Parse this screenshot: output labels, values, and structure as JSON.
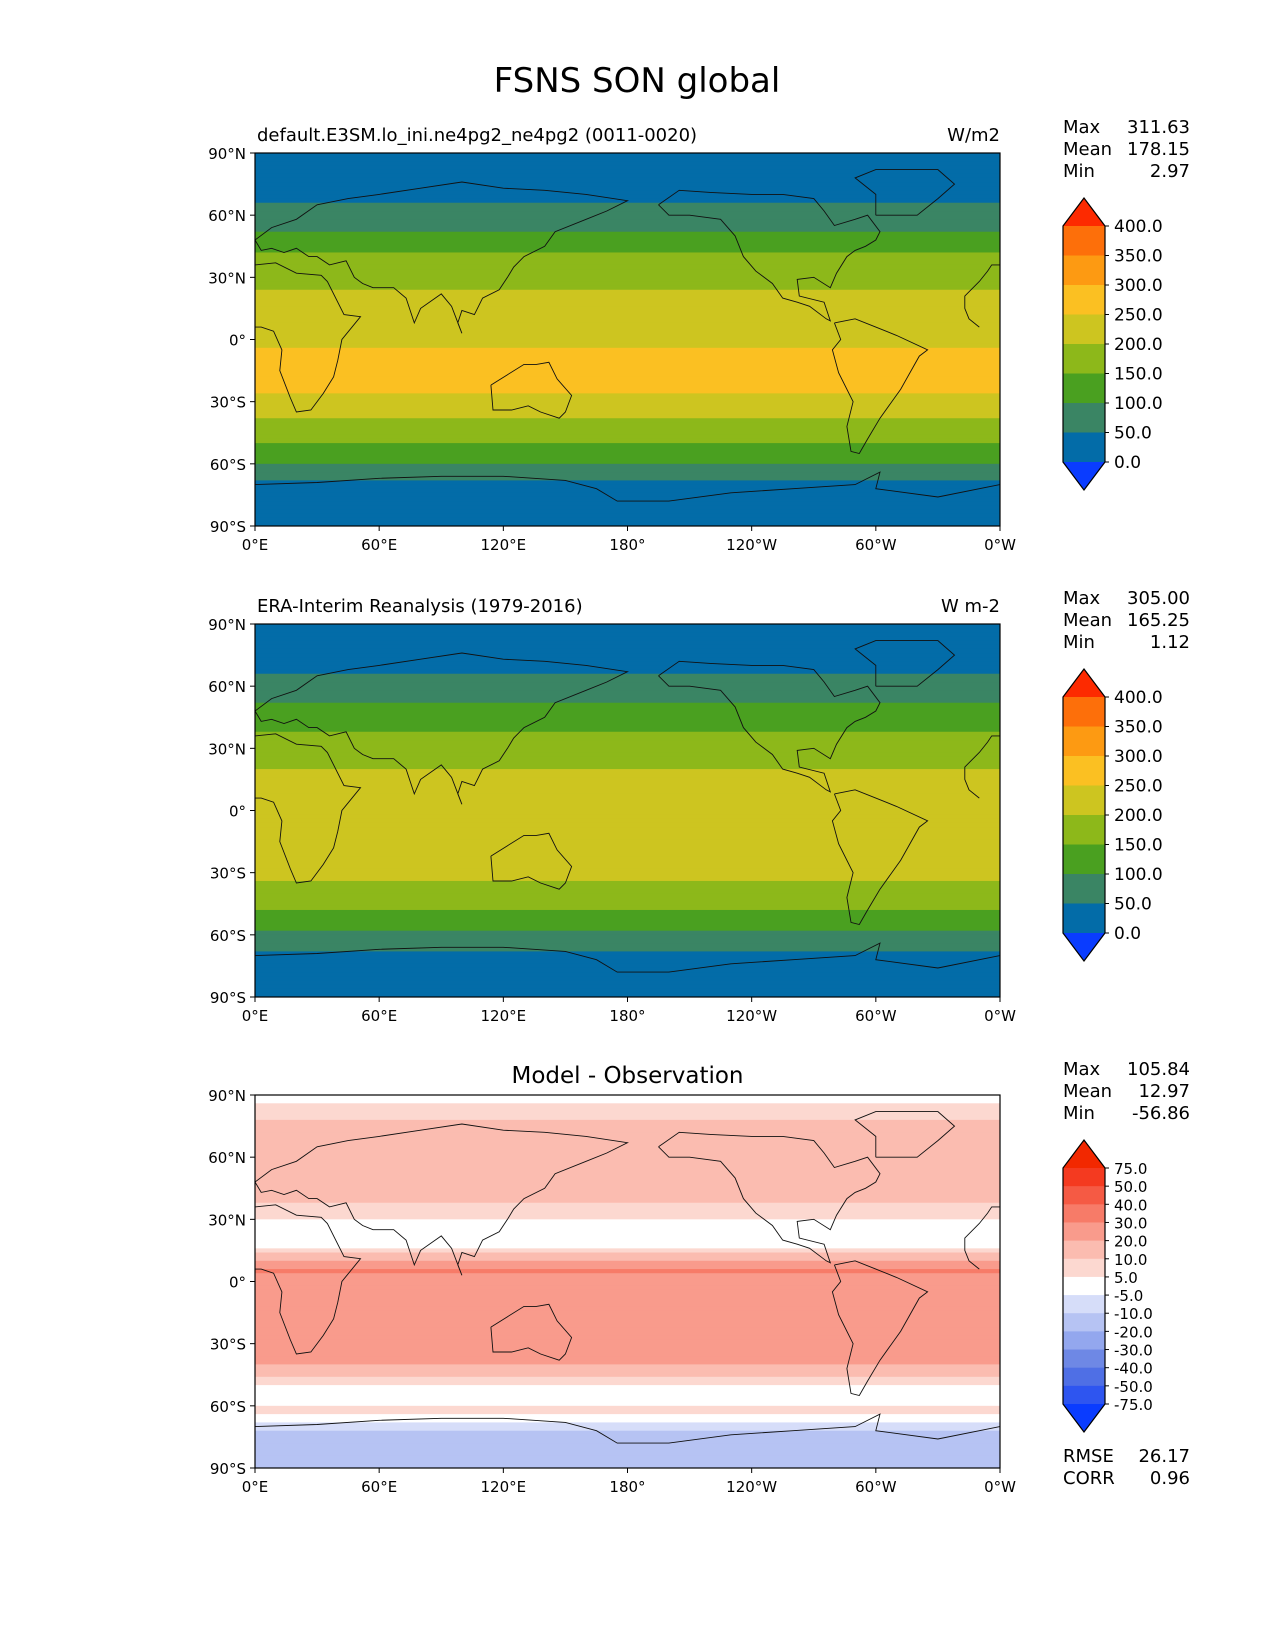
{
  "figure_title": "FSNS SON global",
  "chart_data": [
    {
      "type": "heatmap",
      "panel": "model",
      "title_left": "default.E3SM.lo_ini.ne4pg2_ne4pg2 (0011-0020)",
      "title_right": "W/m2",
      "title_center": "",
      "xticks": [
        "0°E",
        "60°E",
        "120°E",
        "180°",
        "120°W",
        "60°W",
        "0°W"
      ],
      "yticks": [
        "90°N",
        "60°N",
        "30°N",
        "0°",
        "30°S",
        "60°S",
        "90°S"
      ],
      "xlim": [
        0,
        360
      ],
      "ylim": [
        -90,
        90
      ],
      "stats": [
        {
          "label": "Max",
          "value": "311.63"
        },
        {
          "label": "Mean",
          "value": "178.15"
        },
        {
          "label": "Min",
          "value": "2.97"
        }
      ],
      "colorbar": {
        "levels": [
          "0.0",
          "50.0",
          "100.0",
          "150.0",
          "200.0",
          "250.0",
          "300.0",
          "350.0",
          "400.0"
        ],
        "colors": [
          "#0a3cff",
          "#036ca8",
          "#3a8564",
          "#4aa020",
          "#8db81a",
          "#cdc520",
          "#fbc022",
          "#fd9a12",
          "#fd6f0a",
          "#fd2a00"
        ]
      },
      "zonal_profile": [
        {
          "lat": 90,
          "value": 10
        },
        {
          "lat": 75,
          "value": 30
        },
        {
          "lat": 62,
          "value": 60
        },
        {
          "lat": 52,
          "value": 100
        },
        {
          "lat": 45,
          "value": 140
        },
        {
          "lat": 35,
          "value": 170
        },
        {
          "lat": 20,
          "value": 210
        },
        {
          "lat": 5,
          "value": 230
        },
        {
          "lat": -10,
          "value": 260
        },
        {
          "lat": -25,
          "value": 255
        },
        {
          "lat": -38,
          "value": 200
        },
        {
          "lat": -48,
          "value": 160
        },
        {
          "lat": -56,
          "value": 120
        },
        {
          "lat": -62,
          "value": 80
        },
        {
          "lat": -70,
          "value": 40
        },
        {
          "lat": -90,
          "value": 20
        }
      ],
      "stats_extra": []
    },
    {
      "type": "heatmap",
      "panel": "observation",
      "title_left": "ERA-Interim Reanalysis (1979-2016)",
      "title_right": "W m-2",
      "title_center": "",
      "xticks": [
        "0°E",
        "60°E",
        "120°E",
        "180°",
        "120°W",
        "60°W",
        "0°W"
      ],
      "yticks": [
        "90°N",
        "60°N",
        "30°N",
        "0°",
        "30°S",
        "60°S",
        "90°S"
      ],
      "xlim": [
        0,
        360
      ],
      "ylim": [
        -90,
        90
      ],
      "stats": [
        {
          "label": "Max",
          "value": "305.00"
        },
        {
          "label": "Mean",
          "value": "165.25"
        },
        {
          "label": "Min",
          "value": "1.12"
        }
      ],
      "colorbar": {
        "levels": [
          "0.0",
          "50.0",
          "100.0",
          "150.0",
          "200.0",
          "250.0",
          "300.0",
          "350.0",
          "400.0"
        ],
        "colors": [
          "#0a3cff",
          "#036ca8",
          "#3a8564",
          "#4aa020",
          "#8db81a",
          "#cdc520",
          "#fbc022",
          "#fd9a12",
          "#fd6f0a",
          "#fd2a00"
        ]
      },
      "zonal_profile": [
        {
          "lat": 90,
          "value": 10
        },
        {
          "lat": 75,
          "value": 30
        },
        {
          "lat": 62,
          "value": 60
        },
        {
          "lat": 52,
          "value": 95
        },
        {
          "lat": 45,
          "value": 130
        },
        {
          "lat": 35,
          "value": 160
        },
        {
          "lat": 20,
          "value": 200
        },
        {
          "lat": 5,
          "value": 215
        },
        {
          "lat": -10,
          "value": 230
        },
        {
          "lat": -25,
          "value": 225
        },
        {
          "lat": -38,
          "value": 190
        },
        {
          "lat": -48,
          "value": 150
        },
        {
          "lat": -56,
          "value": 115
        },
        {
          "lat": -62,
          "value": 75
        },
        {
          "lat": -70,
          "value": 40
        },
        {
          "lat": -90,
          "value": 20
        }
      ],
      "stats_extra": []
    },
    {
      "type": "heatmap",
      "panel": "difference",
      "title_left": "",
      "title_right": "",
      "title_center": "Model - Observation",
      "xticks": [
        "0°E",
        "60°E",
        "120°E",
        "180°",
        "120°W",
        "60°W",
        "0°W"
      ],
      "yticks": [
        "90°N",
        "60°N",
        "30°N",
        "0°",
        "30°S",
        "60°S",
        "90°S"
      ],
      "xlim": [
        0,
        360
      ],
      "ylim": [
        -90,
        90
      ],
      "stats": [
        {
          "label": "Max",
          "value": "105.84"
        },
        {
          "label": "Mean",
          "value": "12.97"
        },
        {
          "label": "Min",
          "value": "-56.86"
        }
      ],
      "colorbar": {
        "levels": [
          "-75.0",
          "-50.0",
          "-40.0",
          "-30.0",
          "-20.0",
          "-10.0",
          "-5.0",
          "5.0",
          "10.0",
          "20.0",
          "30.0",
          "40.0",
          "50.0",
          "75.0"
        ],
        "colors": [
          "#0a3cff",
          "#2e55f0",
          "#4f6fe5",
          "#6e88e5",
          "#93a7ee",
          "#b6c3f3",
          "#d6ddf9",
          "#ffffff",
          "#fcd8d0",
          "#fbbcb0",
          "#f99b8c",
          "#f77b68",
          "#f55a44",
          "#f43a20",
          "#f22800"
        ]
      },
      "zonal_profile": [
        {
          "lat": 90,
          "value": 2
        },
        {
          "lat": 75,
          "value": 12
        },
        {
          "lat": 60,
          "value": 18
        },
        {
          "lat": 45,
          "value": 15
        },
        {
          "lat": 30,
          "value": 5
        },
        {
          "lat": 18,
          "value": 2
        },
        {
          "lat": 5,
          "value": 30
        },
        {
          "lat": -8,
          "value": 22
        },
        {
          "lat": -20,
          "value": 25
        },
        {
          "lat": -32,
          "value": 30
        },
        {
          "lat": -45,
          "value": 12
        },
        {
          "lat": -55,
          "value": -2
        },
        {
          "lat": -62,
          "value": 8
        },
        {
          "lat": -72,
          "value": -12
        },
        {
          "lat": -90,
          "value": -15
        }
      ],
      "stats_extra": [
        {
          "label": "RMSE",
          "value": "26.17"
        },
        {
          "label": "CORR",
          "value": "0.96"
        }
      ]
    }
  ]
}
